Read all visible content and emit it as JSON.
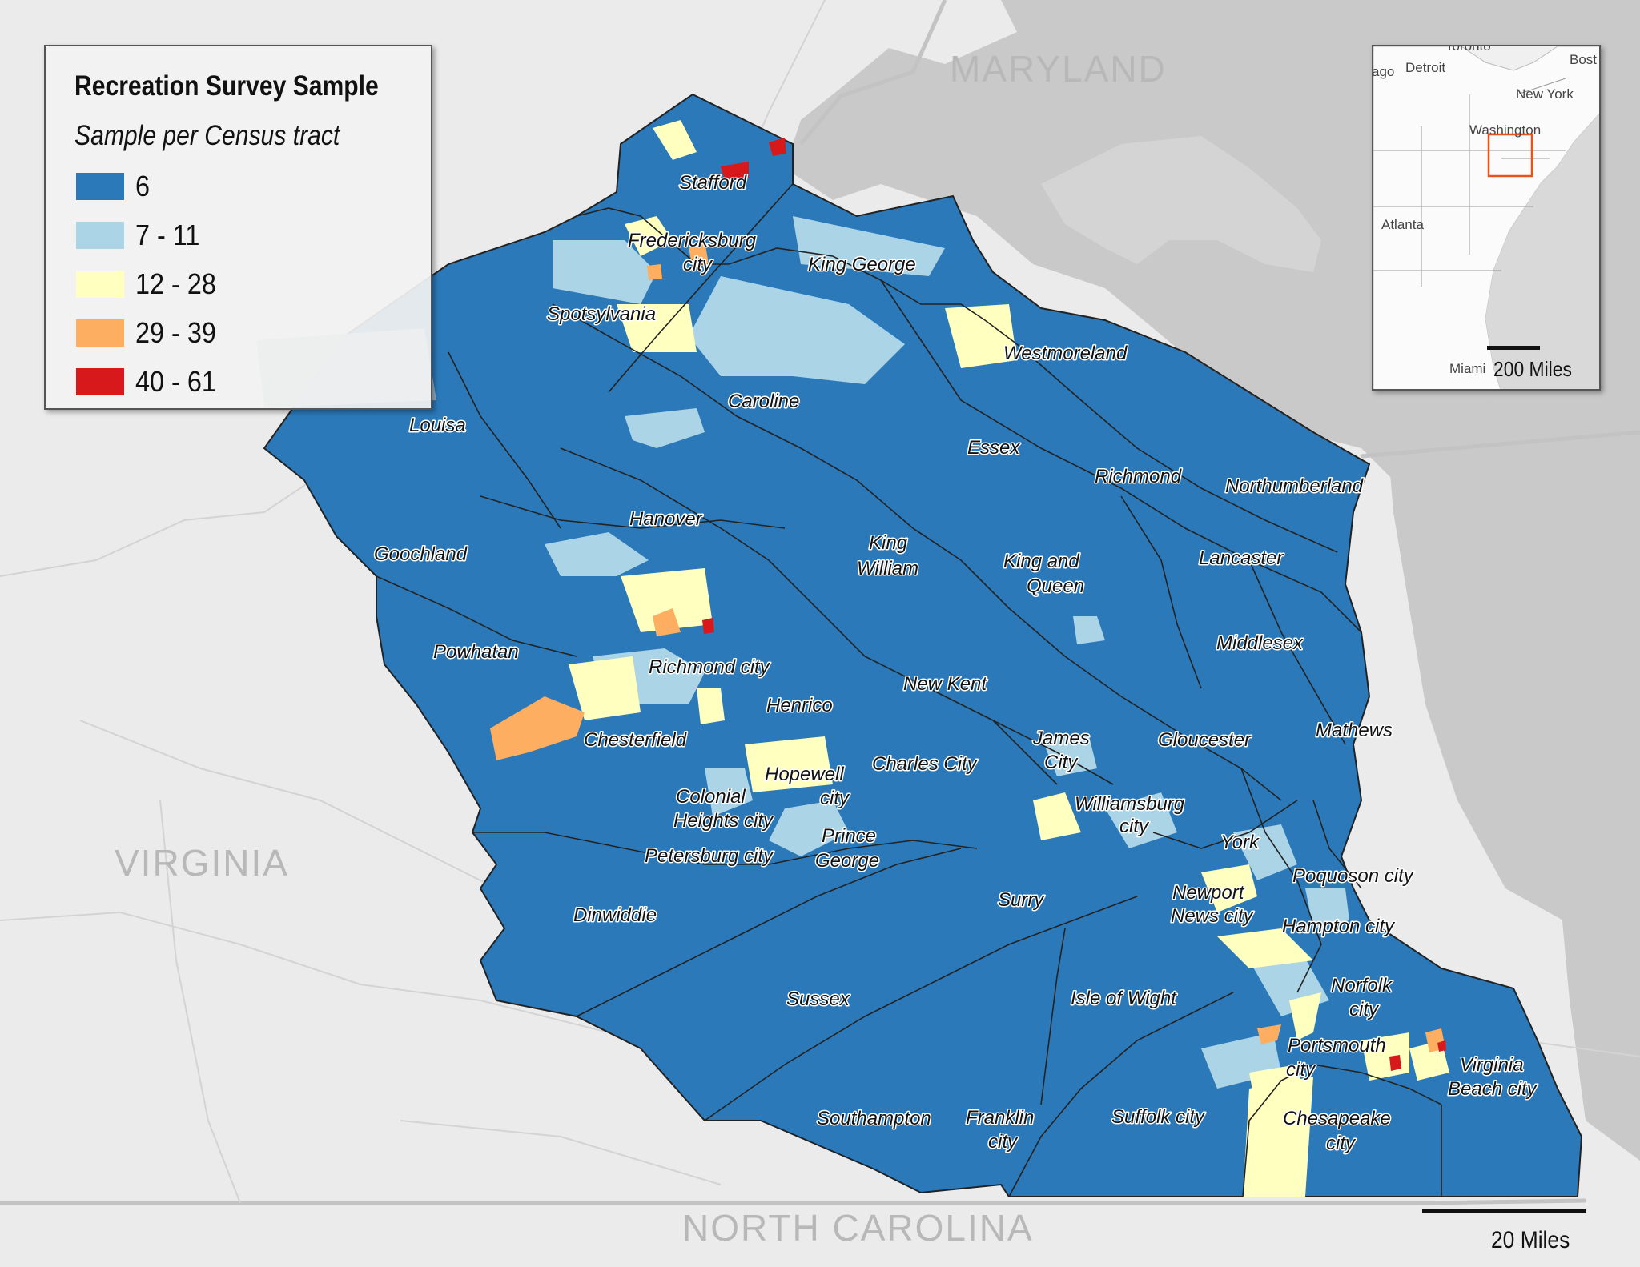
{
  "legend": {
    "title": "Recreation Survey Sample",
    "subtitle": "Sample per Census tract",
    "classes": [
      {
        "label": "6",
        "color": "#2b79b9"
      },
      {
        "label": "7 - 11",
        "color": "#abd4e7"
      },
      {
        "label": "12 - 28",
        "color": "#ffffbf"
      },
      {
        "label": "29 - 39",
        "color": "#fdae61"
      },
      {
        "label": "40 - 61",
        "color": "#d7191c"
      }
    ]
  },
  "states": {
    "maryland": "MARYLAND",
    "virginia": "VIRGINIA",
    "north_carolina": "NORTH CAROLINA"
  },
  "counties": {
    "stafford": "Stafford",
    "fredericksburg_1": "Fredericksburg",
    "fredericksburg_2": "city",
    "spotsylvania": "Spotsylvania",
    "king_george": "King George",
    "westmoreland": "Westmoreland",
    "caroline": "Caroline",
    "louisa": "Louisa",
    "essex": "Essex",
    "richmond": "Richmond",
    "northumberland": "Northumberland",
    "hanover": "Hanover",
    "goochland": "Goochland",
    "king_william_1": "King",
    "king_william_2": "William",
    "king_queen_1": "King and",
    "king_queen_2": "Queen",
    "lancaster": "Lancaster",
    "powhatan": "Powhatan",
    "richmond_city": "Richmond city",
    "middlesex": "Middlesex",
    "new_kent": "New Kent",
    "henrico": "Henrico",
    "mathews": "Mathews",
    "chesterfield": "Chesterfield",
    "james_city_1": "James",
    "james_city_2": "City",
    "gloucester": "Gloucester",
    "hopewell_1": "Hopewell",
    "hopewell_2": "city",
    "charles_city": "Charles City",
    "colonial_1": "Colonial",
    "colonial_2": "Heights city",
    "williamsburg_1": "Williamsburg",
    "williamsburg_2": "city",
    "prince_george_1": "Prince",
    "prince_george_2": "George",
    "york": "York",
    "petersburg": "Petersburg city",
    "poquoson": "Poquoson city",
    "surry": "Surry",
    "newport_1": "Newport",
    "newport_2": "News city",
    "dinwiddie": "Dinwiddie",
    "hampton": "Hampton city",
    "norfolk_1": "Norfolk",
    "norfolk_2": "city",
    "isle_of_wight": "Isle of Wight",
    "sussex": "Sussex",
    "portsmouth_1": "Portsmouth",
    "portsmouth_2": "city",
    "virginia_beach_1": "Virginia",
    "virginia_beach_2": "Beach city",
    "southampton": "Southampton",
    "franklin_1": "Franklin",
    "franklin_2": "city",
    "suffolk": "Suffolk city",
    "chesapeake_1": "Chesapeake",
    "chesapeake_2": "city"
  },
  "inset": {
    "cities": {
      "toronto": "Toronto",
      "chicago": "ago",
      "detroit": "Detroit",
      "boston": "Bost",
      "new_york": "New York",
      "washington": "Washington",
      "atlanta": "Atlanta",
      "miami": "Miami"
    },
    "scale_label": "200 Miles"
  },
  "scale": {
    "label": "20 Miles"
  }
}
